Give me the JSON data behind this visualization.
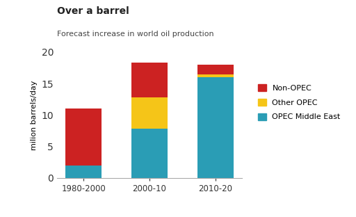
{
  "categories": [
    "1980-2000",
    "2000-10",
    "2010-20"
  ],
  "opec_middle_east": [
    2.0,
    7.8,
    16.0
  ],
  "other_opec": [
    0.0,
    5.0,
    0.5
  ],
  "non_opec": [
    9.0,
    5.5,
    1.5
  ],
  "colors": {
    "opec_middle_east": "#2a9db5",
    "other_opec": "#f5c518",
    "non_opec": "#cc2222"
  },
  "legend_labels": [
    "Non-OPEC",
    "Other OPEC",
    "OPEC Middle East"
  ],
  "title_bold": "Over a barrel",
  "subtitle": "Forecast increase in world oil production",
  "ylabel": "milion barrels/day",
  "ylim": [
    0,
    20
  ],
  "yticks": [
    0,
    5,
    10,
    15,
    20
  ],
  "background_color": "#ffffff",
  "bar_width": 0.55
}
